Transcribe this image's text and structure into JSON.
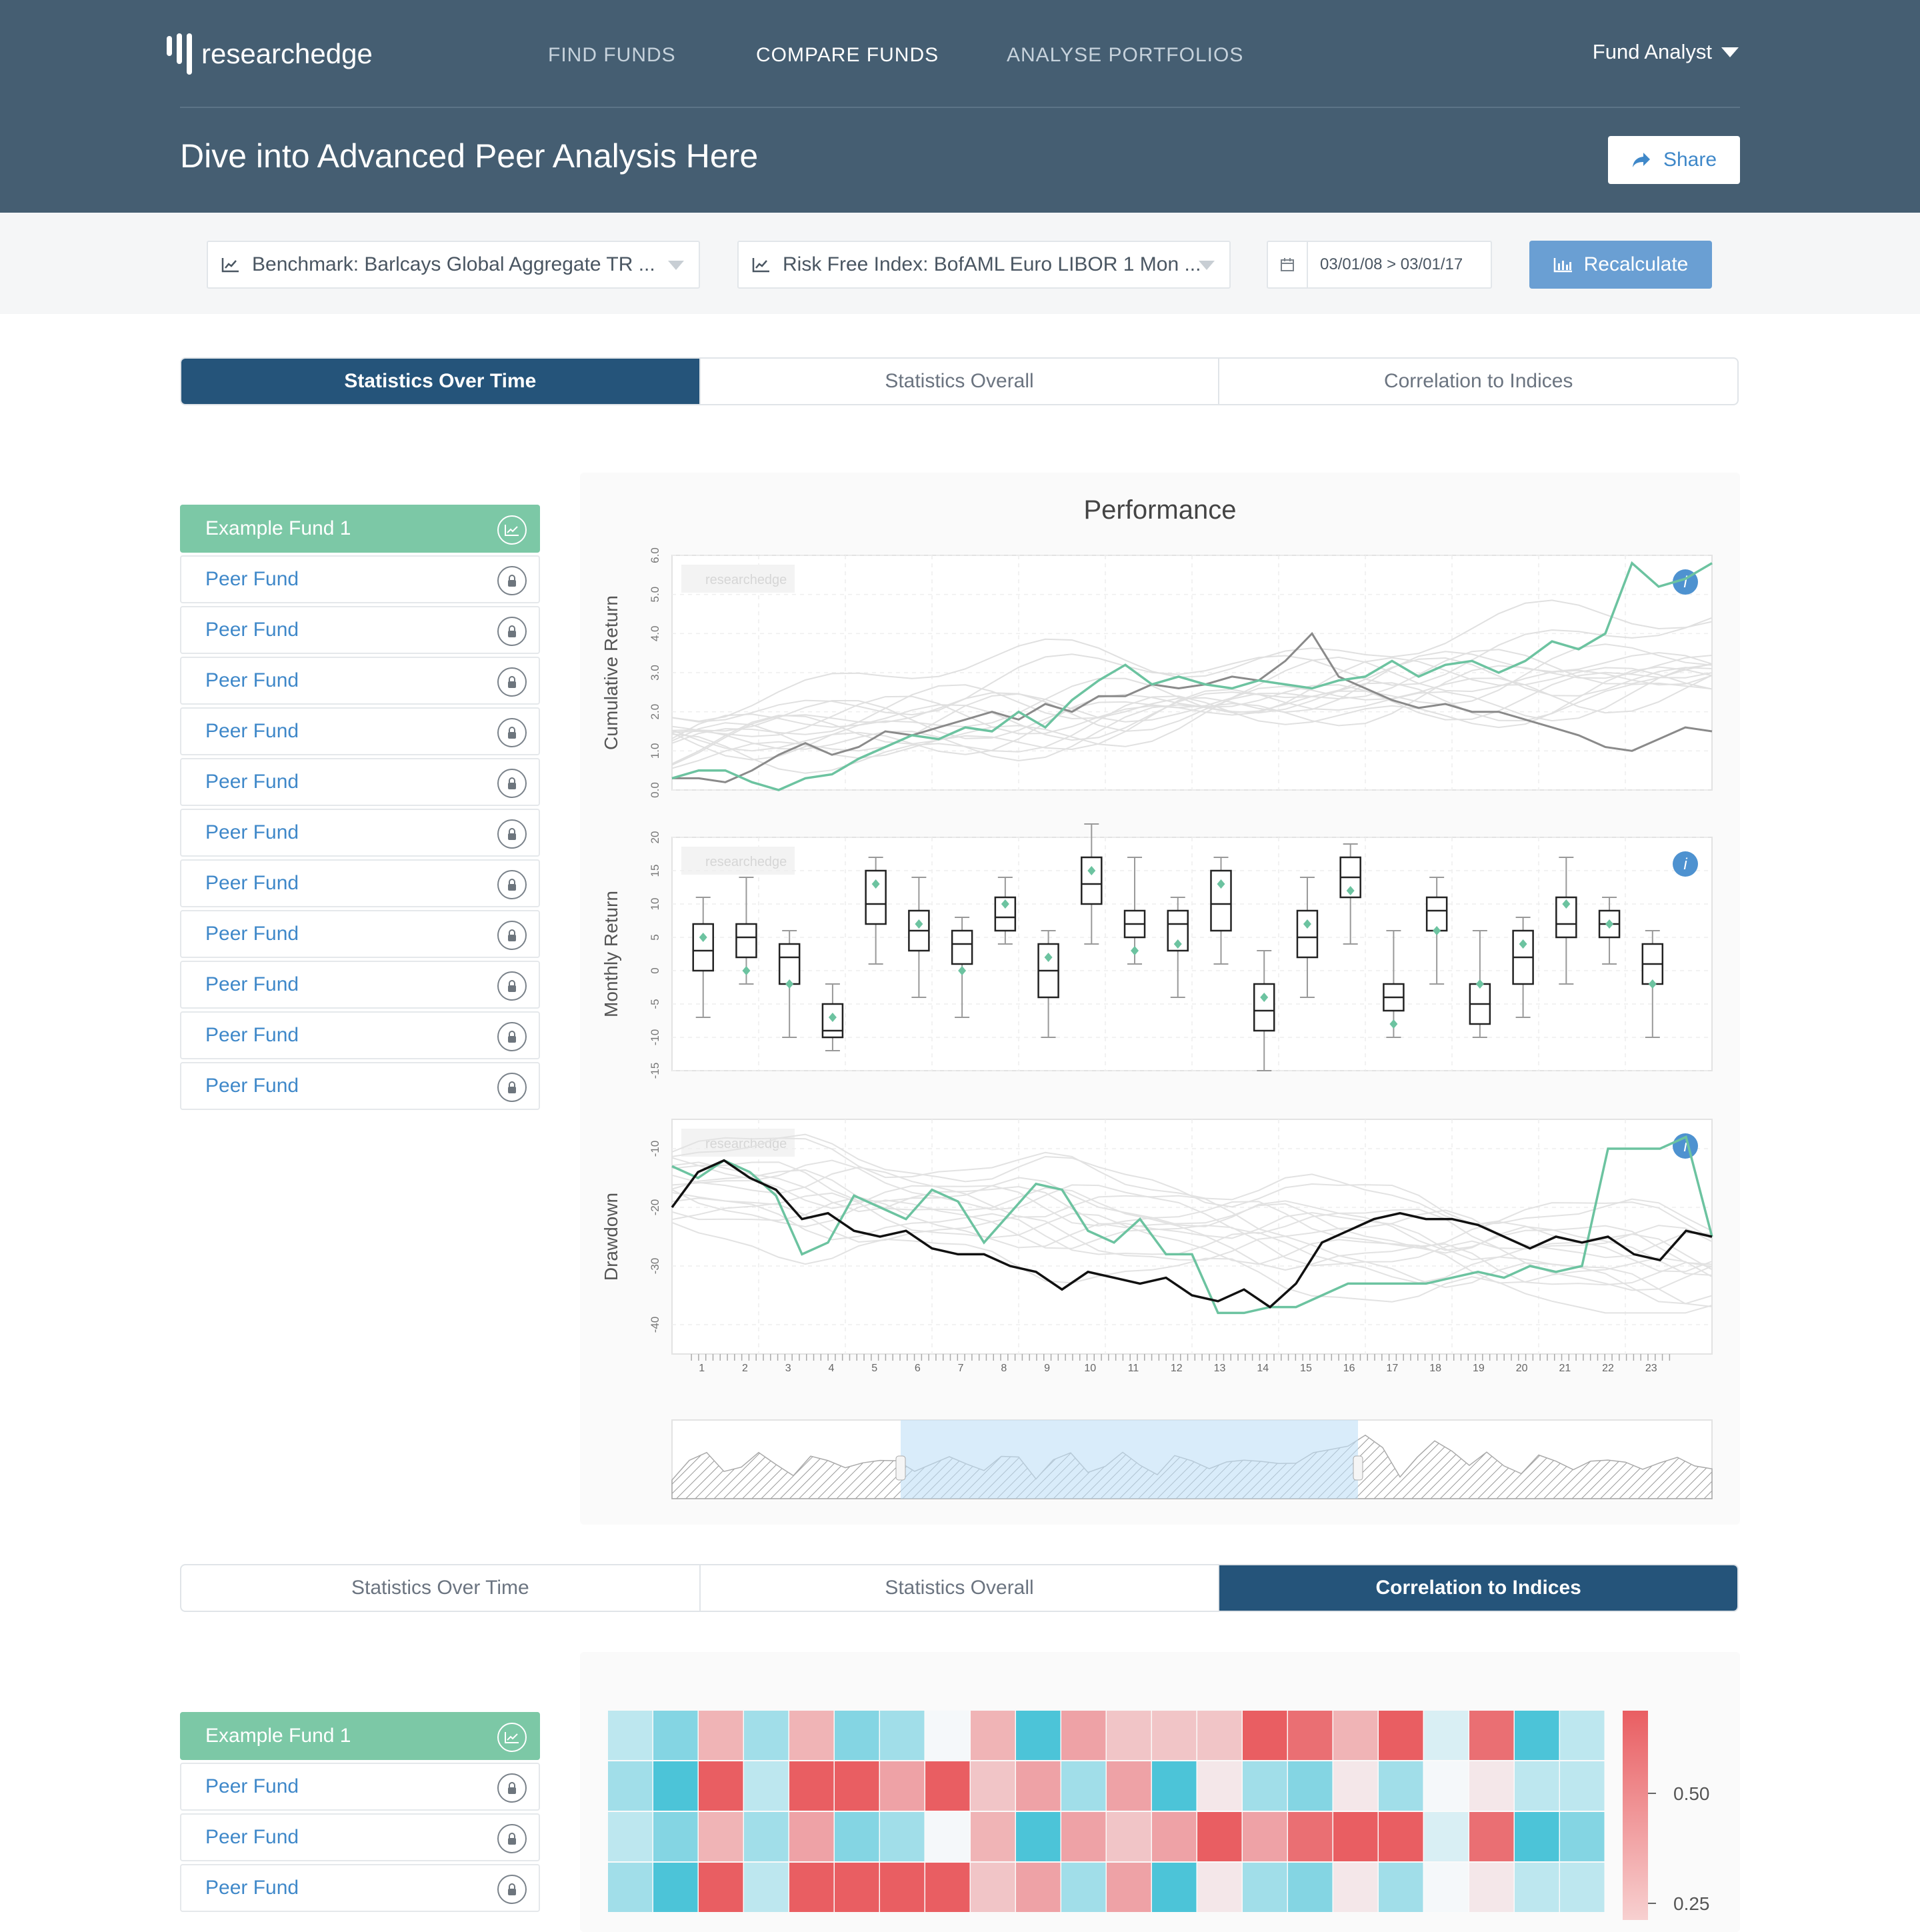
{
  "logo": {
    "text": "researchedge"
  },
  "nav": {
    "items": [
      "FIND FUNDS",
      "COMPARE FUNDS",
      "ANALYSE PORTFOLIOS"
    ],
    "active": 1
  },
  "user": {
    "label": "Fund Analyst"
  },
  "page": {
    "title": "Dive into Advanced Peer Analysis Here",
    "share_label": "Share"
  },
  "controls": {
    "benchmark": "Benchmark: Barlcays Global Aggregate TR ...",
    "risk_free": "Risk Free Index: BofAML Euro LIBOR 1 Mon ...",
    "date_range": "03/01/08 > 03/01/17",
    "recalculate_label": "Recalculate"
  },
  "tabs_top": {
    "items": [
      "Statistics Over Time",
      "Statistics Overall",
      "Correlation to Indices"
    ],
    "active": 0
  },
  "tabs_bottom": {
    "items": [
      "Statistics Over Time",
      "Statistics Overall",
      "Correlation to Indices"
    ],
    "active": 2
  },
  "funds_top": [
    "Example Fund 1",
    "Peer Fund",
    "Peer Fund",
    "Peer Fund",
    "Peer Fund",
    "Peer Fund",
    "Peer Fund",
    "Peer Fund",
    "Peer Fund",
    "Peer Fund",
    "Peer Fund",
    "Peer Fund"
  ],
  "funds_bottom": [
    "Example Fund 1",
    "Peer Fund",
    "Peer Fund",
    "Peer Fund"
  ],
  "colors": {
    "header": "#455e72",
    "fund_line": "#6cc3a0",
    "peer_line": "#dddddd",
    "accent": "#3f88c9",
    "tab_active": "#25547a",
    "heat_high": "#e95e62",
    "heat_low": "#4cc4d8"
  },
  "watermark": "researchedge",
  "chart_data": [
    {
      "type": "line",
      "title": "Performance",
      "ylabel": "Cumulative Return",
      "ylim": [
        0.0,
        6.0
      ],
      "yticks": [
        "0.0",
        "1.0",
        "2.0",
        "3.0",
        "4.0",
        "5.0",
        "6.0"
      ],
      "series": [
        {
          "values": [
            0.3,
            0.5,
            0.5,
            0.2,
            0.0,
            0.3,
            0.4,
            0.8,
            1.1,
            1.4,
            1.3,
            1.6,
            1.5,
            2.0,
            1.6,
            2.3,
            2.8,
            3.2,
            2.7,
            2.9,
            2.7,
            2.6,
            2.8,
            2.7,
            2.6,
            2.8,
            2.9,
            3.3,
            2.9,
            3.2,
            3.3,
            3.0,
            3.3,
            3.8,
            3.6,
            4.0,
            5.8,
            5.2,
            5.4,
            5.8
          ]
        },
        {
          "values": [
            0.3,
            0.3,
            0.2,
            0.5,
            0.9,
            1.2,
            0.9,
            1.1,
            1.5,
            1.4,
            1.6,
            1.8,
            2.0,
            1.8,
            2.2,
            2.0,
            2.4,
            2.4,
            2.7,
            2.6,
            2.7,
            2.9,
            2.8,
            3.3,
            4.0,
            2.9,
            2.6,
            2.3,
            2.1,
            2.2,
            2.0,
            2.0,
            1.8,
            1.6,
            1.4,
            1.1,
            1.0,
            1.3,
            1.6,
            1.5
          ]
        }
      ]
    },
    {
      "type": "box",
      "ylabel": "Monthly Return",
      "ylim": [
        -15,
        20
      ],
      "yticks": [
        "-15",
        "-10",
        "-5",
        "0",
        "5",
        "10",
        "15",
        "20"
      ],
      "categories": [
        "1",
        "2",
        "3",
        "4",
        "5",
        "6",
        "7",
        "8",
        "9",
        "10",
        "11",
        "12",
        "13",
        "14",
        "15",
        "16",
        "17",
        "18",
        "19",
        "20",
        "21",
        "22",
        "23"
      ],
      "boxes": [
        {
          "min": -7,
          "q1": 0,
          "median": 3,
          "q3": 7,
          "max": 11,
          "mean": 5
        },
        {
          "min": -2,
          "q1": 2,
          "median": 5,
          "q3": 7,
          "max": 14,
          "mean": 0
        },
        {
          "min": -10,
          "q1": -2,
          "median": 2,
          "q3": 4,
          "max": 6,
          "mean": -2
        },
        {
          "min": -12,
          "q1": -10,
          "median": -9,
          "q3": -5,
          "max": -2,
          "mean": -7
        },
        {
          "min": 1,
          "q1": 7,
          "median": 10,
          "q3": 15,
          "max": 17,
          "mean": 13
        },
        {
          "min": -4,
          "q1": 3,
          "median": 6,
          "q3": 9,
          "max": 14,
          "mean": 7
        },
        {
          "min": -7,
          "q1": 1,
          "median": 4,
          "q3": 6,
          "max": 8,
          "mean": 0
        },
        {
          "min": 4,
          "q1": 6,
          "median": 8,
          "q3": 11,
          "max": 14,
          "mean": 10
        },
        {
          "min": -10,
          "q1": -4,
          "median": 0,
          "q3": 4,
          "max": 6,
          "mean": 2
        },
        {
          "min": 4,
          "q1": 10,
          "median": 13,
          "q3": 17,
          "max": 22,
          "mean": 15
        },
        {
          "min": 1,
          "q1": 5,
          "median": 7,
          "q3": 9,
          "max": 17,
          "mean": 3
        },
        {
          "min": -4,
          "q1": 3,
          "median": 7,
          "q3": 9,
          "max": 11,
          "mean": 4
        },
        {
          "min": 1,
          "q1": 6,
          "median": 10,
          "q3": 15,
          "max": 17,
          "mean": 13
        },
        {
          "min": -15,
          "q1": -9,
          "median": -6,
          "q3": -2,
          "max": 3,
          "mean": -4
        },
        {
          "min": -4,
          "q1": 2,
          "median": 5,
          "q3": 9,
          "max": 14,
          "mean": 7
        },
        {
          "min": 4,
          "q1": 11,
          "median": 14,
          "q3": 17,
          "max": 19,
          "mean": 12
        },
        {
          "min": -10,
          "q1": -6,
          "median": -4,
          "q3": -2,
          "max": 6,
          "mean": -8
        },
        {
          "min": -2,
          "q1": 6,
          "median": 9,
          "q3": 11,
          "max": 14,
          "mean": 6
        },
        {
          "min": -10,
          "q1": -8,
          "median": -5,
          "q3": -2,
          "max": 6,
          "mean": -2
        },
        {
          "min": -7,
          "q1": -2,
          "median": 2,
          "q3": 6,
          "max": 8,
          "mean": 4
        },
        {
          "min": -2,
          "q1": 5,
          "median": 7,
          "q3": 11,
          "max": 17,
          "mean": 10
        },
        {
          "min": 1,
          "q1": 5,
          "median": 7,
          "q3": 9,
          "max": 11,
          "mean": 7
        },
        {
          "min": -10,
          "q1": -2,
          "median": 1,
          "q3": 4,
          "max": 6,
          "mean": -2
        }
      ]
    },
    {
      "type": "line",
      "ylabel": "Drawdown",
      "ylim": [
        -45,
        -5
      ],
      "yticks": [
        "-40",
        "-30",
        "-20",
        "-10"
      ],
      "xticks": [
        "1",
        "2",
        "3",
        "4",
        "5",
        "6",
        "7",
        "8",
        "9",
        "10",
        "11",
        "12",
        "13",
        "14",
        "15",
        "16",
        "17",
        "18",
        "19",
        "20",
        "21",
        "22",
        "23"
      ],
      "series": [
        {
          "values": [
            -13,
            -15,
            -12,
            -14,
            -18,
            -28,
            -26,
            -18,
            -20,
            -22,
            -17,
            -19,
            -26,
            -21,
            -16,
            -17,
            -24,
            -26,
            -22,
            -28,
            -28,
            -38,
            -38,
            -37,
            -37,
            -35,
            -33,
            -33,
            -33,
            -33,
            -32,
            -31,
            -32,
            -30,
            -31,
            -30,
            -10,
            -10,
            -10,
            -8,
            -25
          ]
        },
        {
          "values": [
            -20,
            -14,
            -12,
            -15,
            -17,
            -22,
            -21,
            -24,
            -25,
            -24,
            -27,
            -28,
            -28,
            -30,
            -31,
            -34,
            -31,
            -32,
            -33,
            -32,
            -35,
            -36,
            -34,
            -37,
            -33,
            -26,
            -24,
            -22,
            -21,
            -22,
            -22,
            -23,
            -25,
            -27,
            -25,
            -26,
            -25,
            -28,
            -29,
            -24,
            -25
          ]
        }
      ]
    },
    {
      "type": "heatmap",
      "colorbar_ticks": [
        "0.50",
        "0.25"
      ],
      "rows": [
        [
          0.2,
          0.1,
          0.5,
          0.15,
          0.5,
          0.1,
          0.15,
          0.3,
          0.5,
          0.0,
          0.55,
          0.45,
          0.45,
          0.45,
          0.75,
          0.7,
          0.5,
          0.75,
          0.25,
          0.7,
          0.0,
          0.2
        ],
        [
          0.15,
          0.0,
          0.75,
          0.2,
          0.75,
          0.75,
          0.55,
          0.75,
          0.45,
          0.55,
          0.15,
          0.55,
          0.0,
          0.35,
          0.15,
          0.1,
          0.35,
          0.15,
          0.3,
          0.35,
          0.2,
          0.2
        ],
        [
          0.2,
          0.1,
          0.5,
          0.15,
          0.55,
          0.1,
          0.15,
          0.3,
          0.5,
          0.0,
          0.55,
          0.45,
          0.55,
          0.75,
          0.55,
          0.7,
          0.75,
          0.75,
          0.25,
          0.7,
          0.0,
          0.1
        ],
        [
          0.15,
          0.0,
          0.75,
          0.2,
          0.75,
          0.75,
          0.75,
          0.75,
          0.45,
          0.55,
          0.15,
          0.55,
          0.0,
          0.35,
          0.15,
          0.1,
          0.35,
          0.15,
          0.3,
          0.35,
          0.2,
          0.2
        ]
      ]
    }
  ]
}
